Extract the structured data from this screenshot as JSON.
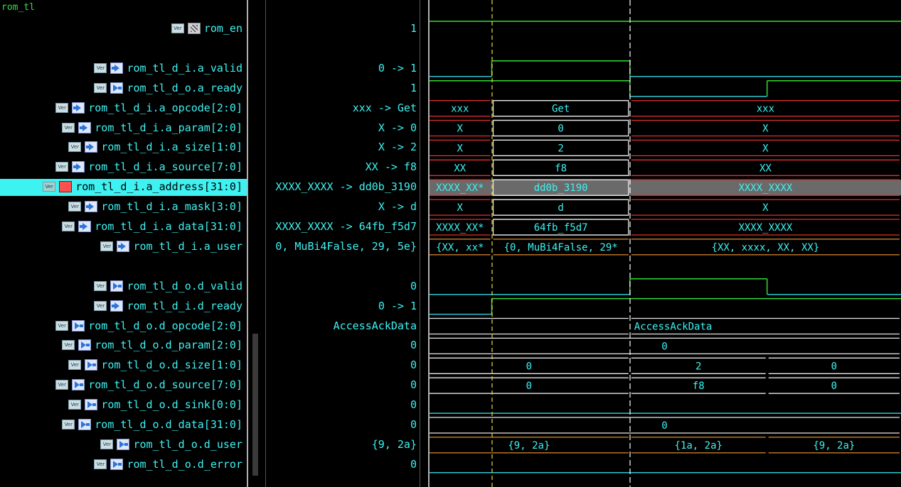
{
  "scope": "rom_tl",
  "signals": [
    {
      "name": "rom_en",
      "kind": "sig",
      "value": "1",
      "row": 1
    },
    {
      "name": "rom_tl_d_i.a_valid",
      "kind": "in",
      "value": "0 -> 1",
      "row": 3
    },
    {
      "name": "rom_tl_d_o.a_ready",
      "kind": "out",
      "value": "1",
      "row": 4
    },
    {
      "name": "rom_tl_d_i.a_opcode[2:0]",
      "kind": "in",
      "value": "xxx -> Get",
      "row": 5
    },
    {
      "name": "rom_tl_d_i.a_param[2:0]",
      "kind": "in",
      "value": "X -> 0",
      "row": 6
    },
    {
      "name": "rom_tl_d_i.a_size[1:0]",
      "kind": "in",
      "value": "X -> 2",
      "row": 7
    },
    {
      "name": "rom_tl_d_i.a_source[7:0]",
      "kind": "in",
      "value": "XX -> f8",
      "row": 8
    },
    {
      "name": "rom_tl_d_i.a_address[31:0]",
      "kind": "in",
      "value": "XXXX_XXXX -> dd0b_3190",
      "row": 9,
      "selected": true
    },
    {
      "name": "rom_tl_d_i.a_mask[3:0]",
      "kind": "in",
      "value": "X -> d",
      "row": 10
    },
    {
      "name": "rom_tl_d_i.a_data[31:0]",
      "kind": "in",
      "value": "XXXX_XXXX -> 64fb_f5d7",
      "row": 11
    },
    {
      "name": "rom_tl_d_i.a_user",
      "kind": "in",
      "value": "0, MuBi4False, 29, 5e}",
      "row": 12
    },
    {
      "name": "rom_tl_d_o.d_valid",
      "kind": "out",
      "value": "0",
      "row": 14
    },
    {
      "name": "rom_tl_d_i.d_ready",
      "kind": "in",
      "value": "0 -> 1",
      "row": 15
    },
    {
      "name": "rom_tl_d_o.d_opcode[2:0]",
      "kind": "out",
      "value": "AccessAckData",
      "row": 16
    },
    {
      "name": "rom_tl_d_o.d_param[2:0]",
      "kind": "out",
      "value": "0",
      "row": 17
    },
    {
      "name": "rom_tl_d_o.d_size[1:0]",
      "kind": "out",
      "value": "0",
      "row": 18
    },
    {
      "name": "rom_tl_d_o.d_source[7:0]",
      "kind": "out",
      "value": "0",
      "row": 19
    },
    {
      "name": "rom_tl_d_o.d_sink[0:0]",
      "kind": "out",
      "value": "0",
      "row": 20
    },
    {
      "name": "rom_tl_d_o.d_data[31:0]",
      "kind": "out",
      "value": "0",
      "row": 21
    },
    {
      "name": "rom_tl_d_o.d_user",
      "kind": "out",
      "value": "{9, 2a}",
      "row": 22
    },
    {
      "name": "rom_tl_d_o.d_error",
      "kind": "out",
      "value": "0",
      "row": 23
    }
  ],
  "icon_label": "Ver",
  "waves": {
    "markers": {
      "t1": "yellow-dashed",
      "t2": "white-dashed"
    },
    "rows": [
      {
        "row": 1,
        "type": "bit",
        "color": "#33dd33",
        "segs": [
          [
            0,
            1.0,
            1
          ]
        ]
      },
      {
        "row": 3,
        "type": "bit",
        "color": "#33dd33",
        "segs": [
          [
            0,
            0.132,
            0
          ],
          [
            0.132,
            0.425,
            1
          ],
          [
            0.425,
            1.0,
            0
          ]
        ],
        "lowcolor": "#2cc4d4"
      },
      {
        "row": 4,
        "type": "bit",
        "color": "#33dd33",
        "segs": [
          [
            0,
            0.425,
            1
          ],
          [
            0.425,
            0.716,
            0
          ],
          [
            0.716,
            1.0,
            1
          ]
        ],
        "lowcolor": "#2cc4d4"
      },
      {
        "row": 5,
        "type": "bus",
        "segs": [
          [
            0,
            0.132,
            "xxx",
            "x"
          ],
          [
            0.132,
            0.425,
            "Get",
            "v"
          ],
          [
            0.425,
            1.0,
            "xxx",
            "x"
          ]
        ]
      },
      {
        "row": 6,
        "type": "bus",
        "segs": [
          [
            0,
            0.132,
            "X",
            "x"
          ],
          [
            0.132,
            0.425,
            "0",
            "v"
          ],
          [
            0.425,
            1.0,
            "X",
            "x"
          ]
        ]
      },
      {
        "row": 7,
        "type": "bus",
        "segs": [
          [
            0,
            0.132,
            "X",
            "x"
          ],
          [
            0.132,
            0.425,
            "2",
            "v"
          ],
          [
            0.425,
            1.0,
            "X",
            "x"
          ]
        ]
      },
      {
        "row": 8,
        "type": "bus",
        "segs": [
          [
            0,
            0.132,
            "XX",
            "x"
          ],
          [
            0.132,
            0.425,
            "f8",
            "v"
          ],
          [
            0.425,
            1.0,
            "XX",
            "x"
          ]
        ]
      },
      {
        "row": 9,
        "type": "bus",
        "sel": true,
        "segs": [
          [
            0,
            0.132,
            "XXXX_XX*",
            "x"
          ],
          [
            0.132,
            0.425,
            "dd0b_3190",
            "v"
          ],
          [
            0.425,
            1.0,
            "XXXX_XXXX",
            "x"
          ]
        ]
      },
      {
        "row": 10,
        "type": "bus",
        "segs": [
          [
            0,
            0.132,
            "X",
            "x"
          ],
          [
            0.132,
            0.425,
            "d",
            "v"
          ],
          [
            0.425,
            1.0,
            "X",
            "x"
          ]
        ]
      },
      {
        "row": 11,
        "type": "bus",
        "segs": [
          [
            0,
            0.132,
            "XXXX_XX*",
            "x"
          ],
          [
            0.132,
            0.425,
            "64fb_f5d7",
            "v"
          ],
          [
            0.425,
            1.0,
            "XXXX_XXXX",
            "x"
          ]
        ]
      },
      {
        "row": 12,
        "type": "bus",
        "segs": [
          [
            0,
            0.132,
            "{XX, xx*",
            "o"
          ],
          [
            0.132,
            0.425,
            "{0, MuBi4False, 29*",
            "o"
          ],
          [
            0.425,
            1.0,
            "{XX, xxxx, XX, XX}",
            "o"
          ]
        ]
      },
      {
        "row": 14,
        "type": "bit",
        "color": "#33dd33",
        "segs": [
          [
            0,
            0.425,
            0
          ],
          [
            0.425,
            0.716,
            1
          ],
          [
            0.716,
            1.0,
            0
          ]
        ],
        "lowcolor": "#2cc4d4"
      },
      {
        "row": 15,
        "type": "bit",
        "color": "#33dd33",
        "segs": [
          [
            0,
            0.132,
            0
          ],
          [
            0.132,
            1.0,
            1
          ]
        ],
        "lowcolor": "#2cc4d4"
      },
      {
        "row": 16,
        "type": "bus",
        "segs": [
          [
            0,
            0.425,
            "",
            "w"
          ],
          [
            0.425,
            1.0,
            "AccessAckData",
            "wl"
          ]
        ]
      },
      {
        "row": 17,
        "type": "bus",
        "segs": [
          [
            0,
            1.0,
            "0",
            "w"
          ]
        ]
      },
      {
        "row": 18,
        "type": "bus",
        "segs": [
          [
            0,
            0.425,
            "0",
            "w"
          ],
          [
            0.425,
            0.716,
            "2",
            "w"
          ],
          [
            0.716,
            1.0,
            "0",
            "w"
          ]
        ]
      },
      {
        "row": 19,
        "type": "bus",
        "segs": [
          [
            0,
            0.425,
            "0",
            "w"
          ],
          [
            0.425,
            0.716,
            "f8",
            "w"
          ],
          [
            0.716,
            1.0,
            "0",
            "w"
          ]
        ]
      },
      {
        "row": 20,
        "type": "bit",
        "color": "#2cc4d4",
        "segs": [
          [
            0,
            1.0,
            0
          ]
        ],
        "lowcolor": "#2cc4d4"
      },
      {
        "row": 21,
        "type": "bus",
        "segs": [
          [
            0,
            1.0,
            "0",
            "w"
          ]
        ]
      },
      {
        "row": 22,
        "type": "bus",
        "segs": [
          [
            0,
            0.425,
            "{9, 2a}",
            "o"
          ],
          [
            0.425,
            0.716,
            "{1a, 2a}",
            "o"
          ],
          [
            0.716,
            1.0,
            "{9, 2a}",
            "o"
          ]
        ]
      },
      {
        "row": 23,
        "type": "bit",
        "color": "#2cc4d4",
        "segs": [
          [
            0,
            1.0,
            0
          ]
        ],
        "lowcolor": "#2cc4d4"
      }
    ]
  }
}
